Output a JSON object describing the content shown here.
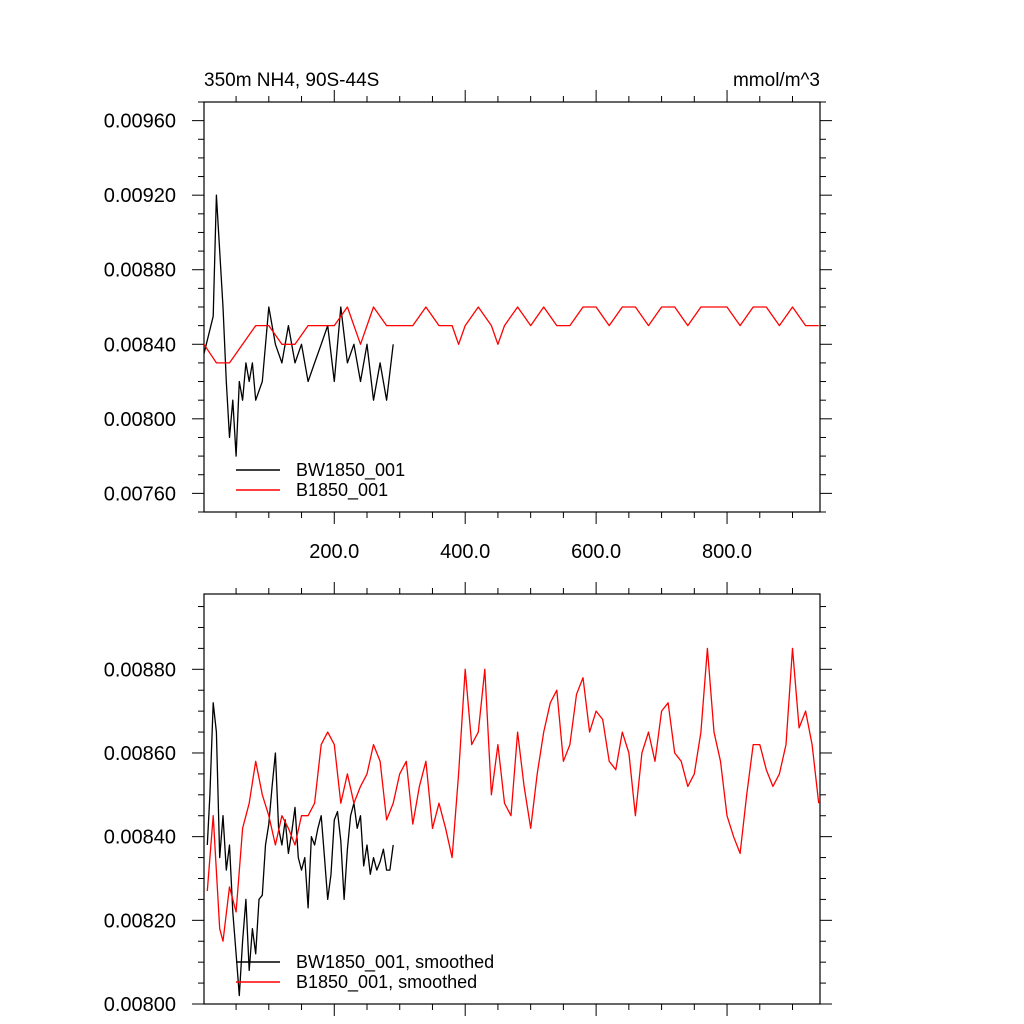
{
  "chart_data": [
    {
      "type": "line",
      "title": "350m NH4, 90S-44S",
      "units_label": "mmol/m^3",
      "xlabel": "",
      "ylabel": "",
      "xlim": [
        1,
        942
      ],
      "ylim": [
        0.0075,
        0.0097
      ],
      "x_ticks": [
        200,
        400,
        600,
        800
      ],
      "x_tick_labels": [
        "200.0",
        "400.0",
        "600.0",
        "800.0"
      ],
      "y_ticks": [
        0.0076,
        0.008,
        0.0084,
        0.0088,
        0.0092,
        0.0096
      ],
      "y_tick_labels": [
        "0.00760",
        "0.00800",
        "0.00840",
        "0.00880",
        "0.00920",
        "0.00960"
      ],
      "grid": false,
      "legend_position": "bottom-left",
      "series": [
        {
          "name": "BW1850_001",
          "color": "#000000",
          "x": [
            1,
            15,
            20,
            25,
            30,
            35,
            40,
            45,
            50,
            55,
            60,
            65,
            70,
            75,
            80,
            90,
            100,
            110,
            120,
            130,
            140,
            150,
            160,
            170,
            180,
            190,
            200,
            210,
            220,
            230,
            240,
            250,
            260,
            270,
            280,
            290
          ],
          "y": [
            0.00835,
            0.00855,
            0.0092,
            0.0089,
            0.0086,
            0.0082,
            0.0079,
            0.0081,
            0.0078,
            0.0082,
            0.0081,
            0.0083,
            0.0082,
            0.0083,
            0.0081,
            0.0082,
            0.0086,
            0.0084,
            0.0083,
            0.0085,
            0.0083,
            0.0084,
            0.0082,
            0.0083,
            0.0084,
            0.0085,
            0.0082,
            0.0086,
            0.0083,
            0.0084,
            0.0082,
            0.0084,
            0.0081,
            0.0083,
            0.0081,
            0.0084
          ]
        },
        {
          "name": "B1850_001",
          "color": "#ff0000",
          "x": [
            1,
            20,
            40,
            60,
            80,
            100,
            120,
            140,
            160,
            180,
            200,
            220,
            240,
            260,
            280,
            300,
            320,
            340,
            360,
            380,
            390,
            400,
            420,
            440,
            450,
            460,
            480,
            500,
            520,
            540,
            560,
            580,
            600,
            620,
            640,
            660,
            680,
            700,
            720,
            740,
            760,
            780,
            800,
            820,
            840,
            860,
            880,
            900,
            920,
            940
          ],
          "y": [
            0.0084,
            0.0083,
            0.0083,
            0.0084,
            0.0085,
            0.0085,
            0.0084,
            0.0084,
            0.0085,
            0.0085,
            0.0085,
            0.0086,
            0.0084,
            0.0086,
            0.0085,
            0.0085,
            0.0085,
            0.0086,
            0.0085,
            0.0085,
            0.0084,
            0.0085,
            0.0086,
            0.0085,
            0.0084,
            0.0085,
            0.0086,
            0.0085,
            0.0086,
            0.0085,
            0.0085,
            0.0086,
            0.0086,
            0.0085,
            0.0086,
            0.0086,
            0.0085,
            0.0086,
            0.0086,
            0.0085,
            0.0086,
            0.0086,
            0.0086,
            0.0085,
            0.0086,
            0.0086,
            0.0085,
            0.0086,
            0.0085,
            0.0085
          ]
        }
      ]
    },
    {
      "type": "line",
      "title": "",
      "xlabel": "",
      "ylabel": "",
      "xlim": [
        1,
        942
      ],
      "ylim": [
        0.008,
        0.00898
      ],
      "x_ticks": [
        200,
        400,
        600,
        800
      ],
      "x_tick_labels": [],
      "y_ticks": [
        0.008,
        0.0082,
        0.0084,
        0.0086,
        0.0088
      ],
      "y_tick_labels": [
        "0.00800",
        "0.00820",
        "0.00840",
        "0.00860",
        "0.00880"
      ],
      "grid": false,
      "legend_position": "bottom-left",
      "series": [
        {
          "name": "BW1850_001, smoothed",
          "color": "#000000",
          "x": [
            6,
            10,
            15,
            20,
            25,
            30,
            35,
            40,
            45,
            50,
            55,
            60,
            65,
            70,
            75,
            80,
            85,
            90,
            95,
            100,
            105,
            110,
            115,
            120,
            125,
            130,
            135,
            140,
            145,
            150,
            155,
            160,
            165,
            170,
            175,
            180,
            185,
            190,
            195,
            200,
            205,
            210,
            215,
            220,
            225,
            230,
            235,
            240,
            245,
            250,
            255,
            260,
            265,
            270,
            275,
            280,
            285,
            290
          ],
          "y": [
            0.00838,
            0.0085,
            0.00872,
            0.00865,
            0.00835,
            0.00845,
            0.00832,
            0.00838,
            0.00822,
            0.00812,
            0.00802,
            0.00815,
            0.00825,
            0.00808,
            0.00818,
            0.00812,
            0.00825,
            0.00826,
            0.00838,
            0.00843,
            0.00852,
            0.0086,
            0.00842,
            0.00838,
            0.00844,
            0.00836,
            0.00841,
            0.00847,
            0.00835,
            0.00832,
            0.00835,
            0.00823,
            0.0084,
            0.00838,
            0.00842,
            0.00845,
            0.00835,
            0.00825,
            0.00831,
            0.00844,
            0.00846,
            0.00839,
            0.00825,
            0.00837,
            0.00845,
            0.00848,
            0.00842,
            0.00845,
            0.00833,
            0.00838,
            0.00831,
            0.00835,
            0.00832,
            0.00834,
            0.00837,
            0.00832,
            0.00832,
            0.00838
          ]
        },
        {
          "name": "B1850_001, smoothed",
          "color": "#ff0000",
          "x": [
            6,
            15,
            25,
            30,
            40,
            50,
            60,
            70,
            80,
            90,
            100,
            110,
            120,
            130,
            140,
            150,
            160,
            170,
            180,
            190,
            200,
            210,
            220,
            230,
            240,
            250,
            260,
            270,
            280,
            290,
            300,
            310,
            320,
            330,
            340,
            350,
            360,
            370,
            380,
            390,
            400,
            410,
            420,
            430,
            440,
            450,
            460,
            470,
            480,
            490,
            500,
            510,
            520,
            530,
            540,
            550,
            560,
            570,
            580,
            590,
            600,
            610,
            620,
            630,
            640,
            650,
            660,
            670,
            680,
            690,
            700,
            710,
            720,
            730,
            740,
            750,
            760,
            770,
            780,
            790,
            800,
            810,
            820,
            830,
            840,
            850,
            860,
            870,
            880,
            890,
            900,
            910,
            920,
            930,
            940
          ],
          "y": [
            0.00827,
            0.00845,
            0.00818,
            0.00815,
            0.00828,
            0.00822,
            0.00842,
            0.00848,
            0.00858,
            0.0085,
            0.00845,
            0.00838,
            0.00845,
            0.00842,
            0.00838,
            0.00845,
            0.00845,
            0.00848,
            0.00862,
            0.00865,
            0.00862,
            0.00848,
            0.00855,
            0.00848,
            0.00852,
            0.00855,
            0.00862,
            0.00858,
            0.00844,
            0.00848,
            0.00855,
            0.00858,
            0.00843,
            0.00852,
            0.00858,
            0.00842,
            0.00848,
            0.00842,
            0.00835,
            0.00855,
            0.0088,
            0.00862,
            0.00865,
            0.0088,
            0.0085,
            0.00862,
            0.00848,
            0.00845,
            0.00865,
            0.00852,
            0.00842,
            0.00855,
            0.00865,
            0.00872,
            0.00875,
            0.00858,
            0.00862,
            0.00874,
            0.00878,
            0.00865,
            0.0087,
            0.00868,
            0.00858,
            0.00856,
            0.00865,
            0.0086,
            0.00845,
            0.0086,
            0.00865,
            0.00858,
            0.0087,
            0.00872,
            0.0086,
            0.00858,
            0.00852,
            0.00855,
            0.00865,
            0.00885,
            0.00865,
            0.00858,
            0.00845,
            0.0084,
            0.00836,
            0.0085,
            0.00862,
            0.00862,
            0.00856,
            0.00852,
            0.00855,
            0.00862,
            0.00885,
            0.00866,
            0.0087,
            0.00862,
            0.00848
          ]
        }
      ]
    }
  ]
}
